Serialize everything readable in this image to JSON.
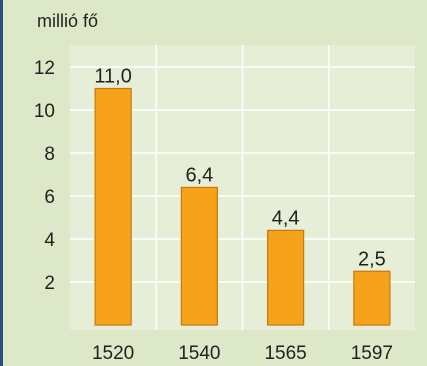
{
  "chart_data": {
    "type": "bar",
    "title": "",
    "unit_label": "millió fő",
    "xlabel": "",
    "ylabel": "",
    "categories": [
      "1520",
      "1540",
      "1565",
      "1597"
    ],
    "values": [
      11.0,
      6.4,
      4.4,
      2.5
    ],
    "data_labels": [
      "11,0",
      "6,4",
      "4,4",
      "2,5"
    ],
    "ylim": [
      0,
      13
    ],
    "yticks": [
      2,
      4,
      6,
      8,
      10,
      12
    ],
    "grid": true,
    "legend": "none",
    "colors": {
      "bar_fill": "#f7a21b",
      "bar_stroke": "#c8780a",
      "plot_background": "#e6eed8",
      "frame_background": "#dde8c8",
      "gridline": "#ffffff",
      "left_border": "#2c4e7a",
      "text": "#231f20"
    }
  }
}
